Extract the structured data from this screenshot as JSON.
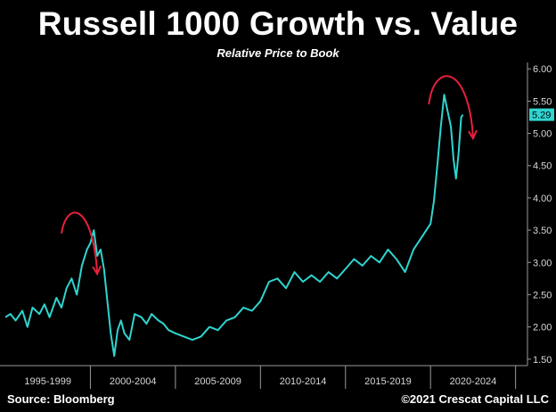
{
  "header": {
    "title": "Russell 1000 Growth vs. Value",
    "subtitle": "Relative Price to Book"
  },
  "footer": {
    "source": "Source: Bloomberg",
    "credit": "©2021 Crescat Capital LLC"
  },
  "colors": {
    "background": "#000000",
    "line": "#2fd5d0",
    "arrow": "#e8203c",
    "axis": "#9a9a9a"
  },
  "chart_data": {
    "type": "line",
    "title": "Russell 1000 Growth vs. Value",
    "subtitle": "Relative Price to Book",
    "xlabel": "",
    "ylabel": "",
    "x_range": [
      1995.0,
      2025.7
    ],
    "ylim": [
      1.4,
      6.1
    ],
    "y_axis_side": "right",
    "y_ticks": [
      "1.50",
      "2.00",
      "2.50",
      "3.00",
      "3.50",
      "4.00",
      "4.50",
      "5.00",
      "5.50",
      "6.00"
    ],
    "x_tick_labels": [
      "1995-1999",
      "2000-2004",
      "2005-2009",
      "2010-2014",
      "2015-2019",
      "2020-2024"
    ],
    "last_value_label": "5.29",
    "grid": false,
    "series": [
      {
        "x": [
          1995.0,
          1995.3,
          1995.6,
          1996.0,
          1996.3,
          1996.6,
          1997.0,
          1997.3,
          1997.6,
          1998.0,
          1998.3,
          1998.6,
          1998.9,
          1999.2,
          1999.5,
          1999.8,
          2000.0,
          2000.2,
          2000.4,
          2000.6,
          2000.8,
          2001.0,
          2001.2,
          2001.4,
          2001.6,
          2001.8,
          2002.0,
          2002.3,
          2002.6,
          2003.0,
          2003.3,
          2003.6,
          2004.0,
          2004.3,
          2004.6,
          2005.0,
          2005.5,
          2006.0,
          2006.5,
          2007.0,
          2007.5,
          2008.0,
          2008.5,
          2009.0,
          2009.5,
          2010.0,
          2010.5,
          2011.0,
          2011.5,
          2012.0,
          2012.5,
          2013.0,
          2013.5,
          2014.0,
          2014.5,
          2015.0,
          2015.5,
          2016.0,
          2016.5,
          2017.0,
          2017.5,
          2018.0,
          2018.5,
          2019.0,
          2019.5,
          2020.0,
          2020.2,
          2020.4,
          2020.6,
          2020.8,
          2021.0,
          2021.2,
          2021.35,
          2021.5,
          2021.65,
          2021.8,
          2021.9
        ],
        "values": [
          2.15,
          2.2,
          2.1,
          2.25,
          2.0,
          2.3,
          2.2,
          2.35,
          2.15,
          2.45,
          2.3,
          2.6,
          2.75,
          2.5,
          2.95,
          3.2,
          3.3,
          3.5,
          3.1,
          3.2,
          2.9,
          2.4,
          1.9,
          1.55,
          1.95,
          2.1,
          1.9,
          1.8,
          2.2,
          2.15,
          2.05,
          2.2,
          2.1,
          2.05,
          1.95,
          1.9,
          1.85,
          1.8,
          1.85,
          2.0,
          1.95,
          2.1,
          2.15,
          2.3,
          2.25,
          2.4,
          2.7,
          2.75,
          2.6,
          2.85,
          2.7,
          2.8,
          2.7,
          2.85,
          2.75,
          2.9,
          3.05,
          2.95,
          3.1,
          3.0,
          3.2,
          3.05,
          2.85,
          3.2,
          3.4,
          3.6,
          3.95,
          4.5,
          5.1,
          5.6,
          5.35,
          5.1,
          4.6,
          4.3,
          4.7,
          5.25,
          5.29
        ]
      }
    ],
    "annotations": [
      "arrow peak 1999-2000",
      "arrow peak 2020-2021"
    ]
  }
}
